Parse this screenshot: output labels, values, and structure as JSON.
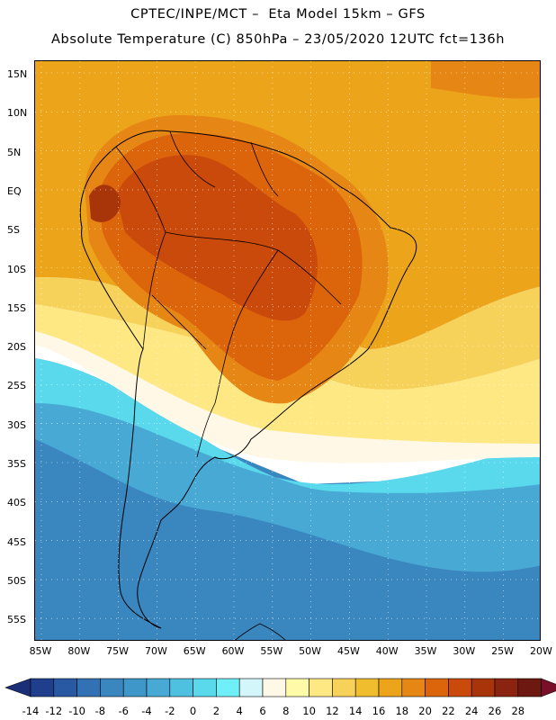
{
  "title_line1": "CPTEC/INPE/MCT –  Eta Model 15km – GFS",
  "title_line2": "Absolute Temperature (C) 850hPa – 23/05/2020 12UTC fct=136h",
  "lat_labels": [
    "15N",
    "10N",
    "5N",
    "EQ",
    "5S",
    "10S",
    "15S",
    "20S",
    "25S",
    "30S",
    "35S",
    "40S",
    "45S",
    "50S",
    "55S"
  ],
  "lon_labels": [
    "85W",
    "80W",
    "75W",
    "70W",
    "65W",
    "60W",
    "55W",
    "50W",
    "45W",
    "40W",
    "35W",
    "30W",
    "25W",
    "20W"
  ],
  "colorbar": {
    "labels": [
      "-14",
      "-12",
      "-10",
      "-8",
      "-6",
      "-4",
      "-2",
      "0",
      "2",
      "4",
      "6",
      "8",
      "10",
      "12",
      "14",
      "16",
      "18",
      "20",
      "22",
      "24",
      "26",
      "28"
    ],
    "colors": [
      "#1f3f8c",
      "#2a59a3",
      "#3272b4",
      "#3a86bf",
      "#3f97c9",
      "#47a9d4",
      "#4ec0e0",
      "#5ad8ec",
      "#6ff0f8",
      "#d2f6fa",
      "#fff8e6",
      "#fffaa8",
      "#fde884",
      "#f7d25a",
      "#f0bd2e",
      "#eca41b",
      "#e68615",
      "#dc640b",
      "#c94a0a",
      "#a8340a",
      "#8a2410",
      "#6d1810"
    ],
    "arrow_low": "#1b2f78",
    "arrow_high": "#7a0f2a"
  },
  "palette": {
    "ocean_cold": "#3a86bf",
    "ocean_cool": "#47a9d4",
    "ocean_mid": "#5ad8ec",
    "ocean_light": "#6ff0f8",
    "pale": "#fff8e6",
    "yellow": "#fde884",
    "light_orange": "#f7d25a",
    "orange": "#eca41b",
    "dark_orange": "#e68615",
    "red_orange": "#dc640b",
    "brown": "#c94a0a",
    "dark_brown": "#a8340a"
  }
}
